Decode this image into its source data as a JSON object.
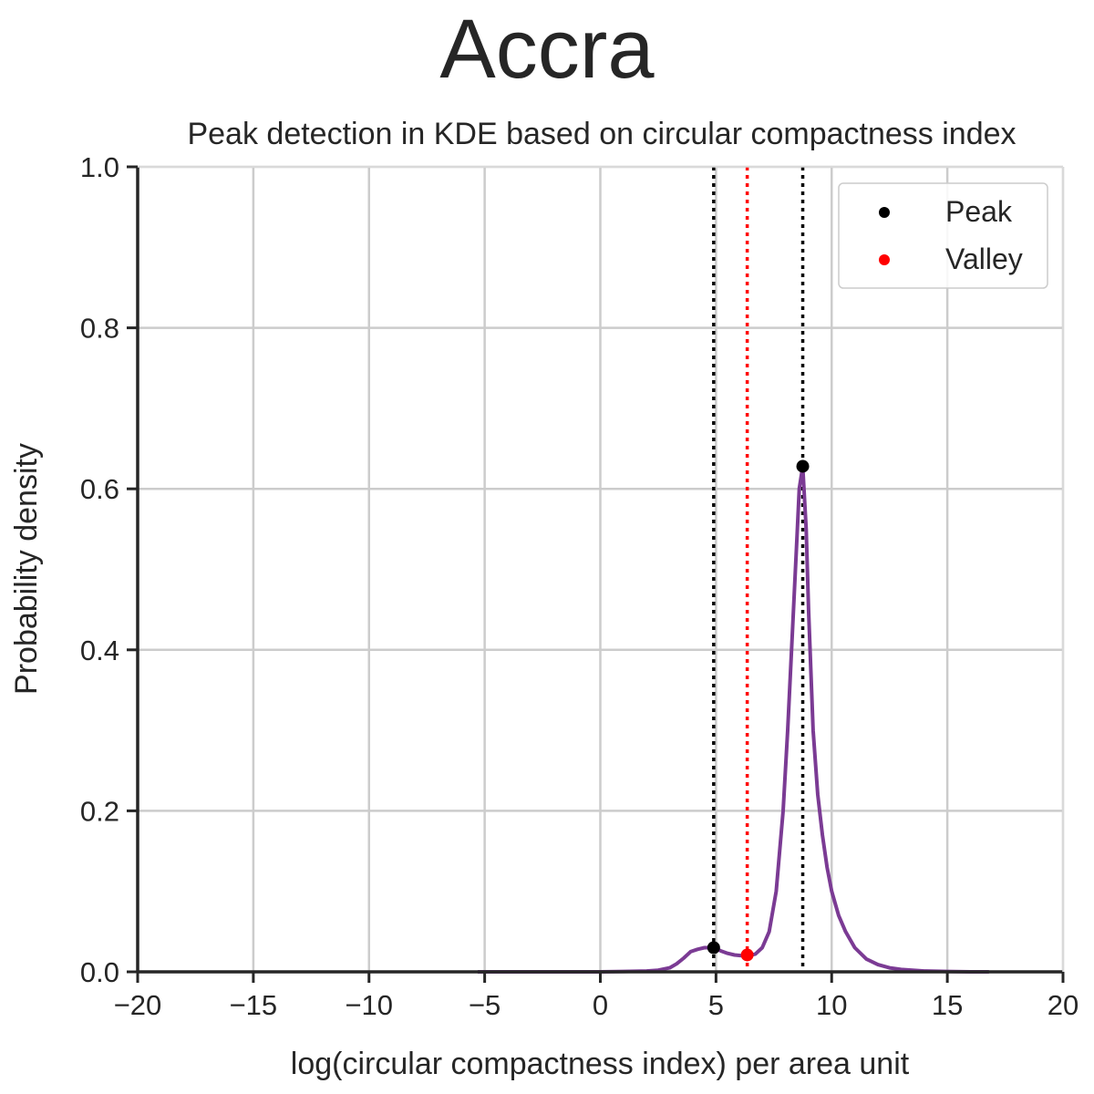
{
  "suptitle": "Accra",
  "chart_data": {
    "type": "line",
    "title": "Peak detection in KDE based on circular compactness index",
    "xlabel": "log(circular compactness index) per area unit",
    "ylabel": "Probability density",
    "xlim": [
      -20,
      20
    ],
    "ylim": [
      0,
      1.0
    ],
    "xticks": [
      -20,
      -15,
      -10,
      -5,
      0,
      5,
      10,
      15,
      20
    ],
    "xtick_labels": [
      "−20",
      "−15",
      "−10",
      "−5",
      "0",
      "5",
      "10",
      "15",
      "20"
    ],
    "yticks": [
      0.0,
      0.2,
      0.4,
      0.6,
      0.8,
      1.0
    ],
    "ytick_labels": [
      "0.0",
      "0.2",
      "0.4",
      "0.6",
      "0.8",
      "1.0"
    ],
    "grid": true,
    "legend_position": "upper right",
    "legend": [
      "Peak",
      "Valley"
    ],
    "series": [
      {
        "color": "#7b3b94",
        "x": [
          -5.3,
          -4,
          -2,
          0,
          1,
          2,
          2.5,
          3,
          3.3,
          3.6,
          3.9,
          4.2,
          4.5,
          4.8,
          5.0,
          5.2,
          5.5,
          5.8,
          6.1,
          6.36,
          6.7,
          7.0,
          7.3,
          7.6,
          7.9,
          8.1,
          8.3,
          8.5,
          8.6,
          8.75,
          8.9,
          9.0,
          9.2,
          9.4,
          9.6,
          9.8,
          10.0,
          10.3,
          10.6,
          11.0,
          11.5,
          12.0,
          12.5,
          13.0,
          14.0,
          15.0,
          16.0,
          16.8
        ],
        "y": [
          0.0,
          0.0,
          0.0,
          0.0,
          0.0005,
          0.001,
          0.002,
          0.005,
          0.01,
          0.017,
          0.025,
          0.028,
          0.03,
          0.03,
          0.029,
          0.026,
          0.023,
          0.021,
          0.02,
          0.02,
          0.022,
          0.03,
          0.05,
          0.1,
          0.2,
          0.3,
          0.42,
          0.54,
          0.6,
          0.628,
          0.55,
          0.45,
          0.3,
          0.22,
          0.17,
          0.13,
          0.1,
          0.07,
          0.05,
          0.03,
          0.016,
          0.009,
          0.005,
          0.003,
          0.001,
          0.0005,
          0.0,
          0.0
        ]
      }
    ],
    "peaks": {
      "x": [
        4.9,
        8.75
      ],
      "y": [
        0.03,
        0.628
      ],
      "color": "#000000"
    },
    "valleys": {
      "x": [
        6.35
      ],
      "y": [
        0.021
      ],
      "color": "#ff0000"
    },
    "vlines": [
      {
        "x": 4.9,
        "color": "#000000",
        "style": "dotted"
      },
      {
        "x": 8.75,
        "color": "#000000",
        "style": "dotted"
      },
      {
        "x": 6.35,
        "color": "#ff0000",
        "style": "dotted"
      }
    ]
  }
}
